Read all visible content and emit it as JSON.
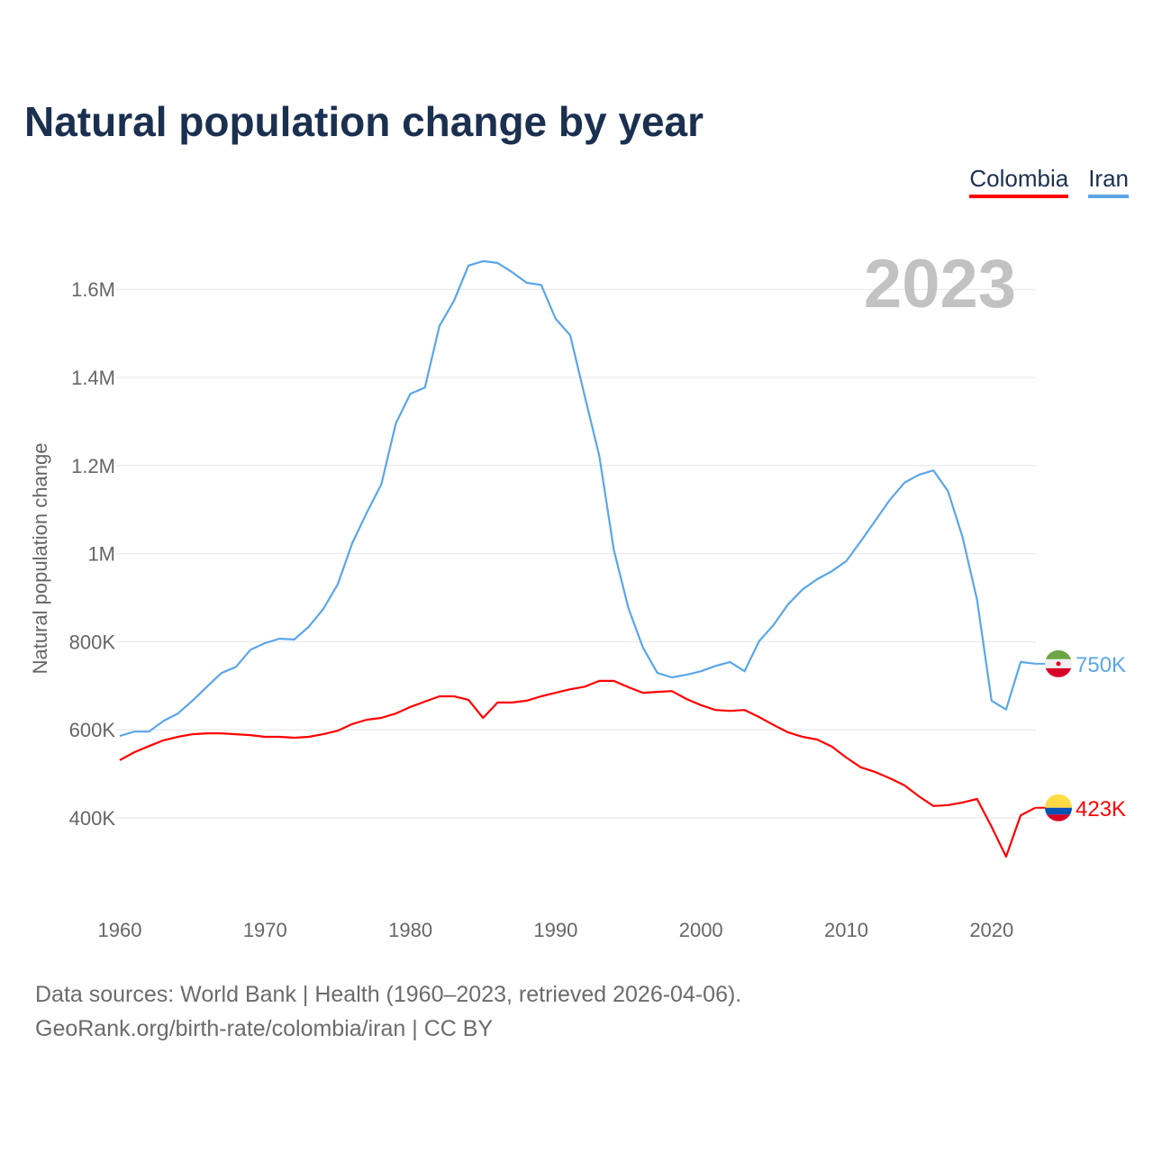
{
  "title": "Natural population change by year",
  "legend": [
    {
      "name": "Colombia",
      "color": "#ff0000"
    },
    {
      "name": "Iran",
      "color": "#5aa6ea"
    }
  ],
  "year_label": "2023",
  "footer": {
    "line1": "Data sources: World Bank | Health (1960–2023, retrieved 2026-04-06).",
    "line2": "GeoRank.org/birth-rate/colombia/iran | CC BY"
  },
  "chart_data": {
    "type": "line",
    "title": "Natural population change by year",
    "xlabel": "",
    "ylabel": "Natural population change",
    "xlim": [
      1960,
      2023
    ],
    "ylim": [
      200000,
      1700000
    ],
    "grid": true,
    "legend_position": "top-right",
    "x_ticks": [
      1960,
      1970,
      1980,
      1990,
      2000,
      2010,
      2020
    ],
    "y_ticks": [
      {
        "value": 400000,
        "label": "400K"
      },
      {
        "value": 600000,
        "label": "600K"
      },
      {
        "value": 800000,
        "label": "800K"
      },
      {
        "value": 1000000,
        "label": "1M"
      },
      {
        "value": 1200000,
        "label": "1.2M"
      },
      {
        "value": 1400000,
        "label": "1.4M"
      },
      {
        "value": 1600000,
        "label": "1.6M"
      }
    ],
    "start_year": 1960,
    "series": [
      {
        "name": "Iran",
        "color": "#5aa6ea",
        "end_label": "750K",
        "values": [
          586000,
          596000,
          596000,
          620000,
          637000,
          666000,
          698000,
          729000,
          743000,
          782000,
          797000,
          807000,
          805000,
          834000,
          874000,
          930000,
          1024000,
          1093000,
          1157000,
          1296000,
          1363000,
          1377000,
          1517000,
          1574000,
          1654000,
          1664000,
          1660000,
          1639000,
          1615000,
          1610000,
          1533000,
          1496000,
          1357000,
          1222000,
          1009000,
          877000,
          787000,
          729000,
          719000,
          725000,
          733000,
          745000,
          754000,
          733000,
          801000,
          838000,
          885000,
          919000,
          942000,
          960000,
          983000,
          1028000,
          1075000,
          1122000,
          1161000,
          1179000,
          1189000,
          1142000,
          1038000,
          895000,
          666000,
          646000,
          754000,
          750000
        ]
      },
      {
        "name": "Colombia",
        "color": "#ff0000",
        "end_label": "423K",
        "values": [
          531000,
          549000,
          563000,
          576000,
          584000,
          590000,
          592000,
          592000,
          590000,
          588000,
          584000,
          584000,
          582000,
          584000,
          590000,
          598000,
          613000,
          623000,
          627000,
          637000,
          652000,
          664000,
          676000,
          676000,
          668000,
          627000,
          662000,
          662000,
          666000,
          676000,
          684000,
          692000,
          698000,
          711000,
          711000,
          697000,
          684000,
          686000,
          688000,
          670000,
          656000,
          645000,
          643000,
          645000,
          629000,
          611000,
          594000,
          584000,
          578000,
          562000,
          537000,
          515000,
          504000,
          490000,
          474000,
          449000,
          427000,
          429000,
          435000,
          443000,
          380000,
          312000,
          406000,
          423000
        ]
      }
    ]
  }
}
